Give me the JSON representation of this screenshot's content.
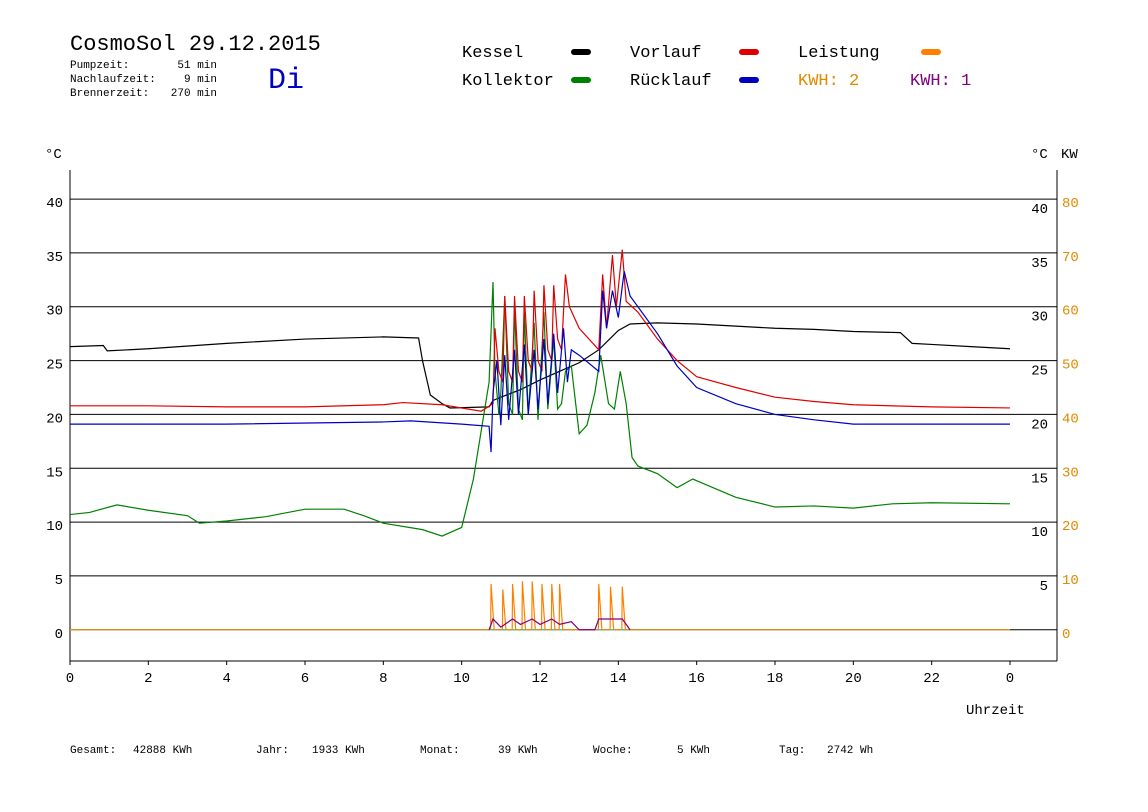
{
  "chart_data": {
    "type": "line",
    "title": "CosmoSol 29.12.2015",
    "weekday": "Di",
    "stats": [
      {
        "label": "Pumpzeit:",
        "value": "51 min"
      },
      {
        "label": "Nachlaufzeit:",
        "value": "9 min"
      },
      {
        "label": "Brennerzeit:",
        "value": "270 min"
      }
    ],
    "kwh_labels": [
      {
        "label": "KWH: 2",
        "color": "#e08a00"
      },
      {
        "label": "KWH: 1",
        "color": "#800080"
      }
    ],
    "y_unit": "°C",
    "y_right_unit": "°C",
    "y2_unit": "KW",
    "y2_color": "#e08a00",
    "x_label": "Uhrzeit",
    "xlim": [
      0,
      25.2
    ],
    "xticks": [
      0,
      2,
      4,
      6,
      8,
      10,
      12,
      14,
      16,
      18,
      20,
      22,
      {
        "value": 24,
        "label": "0"
      }
    ],
    "ylim": [
      -2.9,
      42.7
    ],
    "yticks": [
      0,
      5,
      10,
      15,
      20,
      25,
      30,
      35,
      40
    ],
    "y_right_ticks": [
      5,
      10,
      15,
      20,
      25,
      30,
      35,
      40
    ],
    "y2lim": [
      -5.8,
      85.4
    ],
    "y2ticks": [
      0,
      10,
      20,
      30,
      40,
      50,
      60,
      70,
      80
    ],
    "baseline_color": "#00e0e0",
    "grid": true,
    "series": [
      {
        "name": "Kessel",
        "color": "#000000",
        "x": [
          0,
          0.85,
          0.95,
          2,
          4,
          6,
          8,
          8.9,
          9.0,
          9.2,
          9.5,
          9.7,
          10.7,
          10.8,
          11.0,
          11.5,
          12.0,
          12.5,
          13.0,
          13.5,
          14.0,
          14.3,
          15,
          16,
          17,
          18,
          19,
          20,
          21.2,
          21.5,
          22,
          23,
          24
        ],
        "values": [
          26.3,
          26.4,
          25.9,
          26.1,
          26.6,
          27.0,
          27.2,
          27.1,
          25,
          21.8,
          21,
          20.6,
          20.7,
          21.3,
          21.6,
          22.3,
          23.2,
          24,
          24.8,
          26,
          27.8,
          28.4,
          28.5,
          28.4,
          28.2,
          28,
          27.9,
          27.7,
          27.6,
          26.6,
          26.5,
          26.3,
          26.1
        ]
      },
      {
        "name": "Kollektor",
        "color": "#008000",
        "x": [
          0,
          0.5,
          1.2,
          2,
          3,
          3.3,
          4,
          5,
          6,
          7,
          7.5,
          8,
          9,
          9.5,
          10,
          10.3,
          10.7,
          10.8,
          10.85,
          10.95,
          11.0,
          11.1,
          11.2,
          11.3,
          11.35,
          11.45,
          11.55,
          11.6,
          11.7,
          11.85,
          11.95,
          12.1,
          12.2,
          12.35,
          12.45,
          12.55,
          12.65,
          12.8,
          13.0,
          13.2,
          13.4,
          13.55,
          13.75,
          13.9,
          14.05,
          14.2,
          14.35,
          14.5,
          15,
          15.5,
          15.9,
          17,
          18,
          19,
          20,
          21,
          22,
          24
        ],
        "values": [
          10.7,
          10.9,
          11.6,
          11.1,
          10.6,
          9.9,
          10.1,
          10.5,
          11.2,
          11.2,
          10.6,
          9.9,
          9.3,
          8.7,
          9.5,
          14,
          23,
          32.3,
          24,
          20,
          22,
          31,
          21,
          20,
          30,
          20.5,
          19.5,
          29.5,
          20,
          28.5,
          19.5,
          29.5,
          20.5,
          27,
          20.5,
          21,
          24,
          24.5,
          18.2,
          19,
          22,
          25.5,
          21,
          20.5,
          24,
          21,
          16,
          15.2,
          14.5,
          13.2,
          14,
          12.3,
          11.4,
          11.5,
          11.3,
          11.7,
          11.8,
          11.7
        ]
      },
      {
        "name": "Vorlauf",
        "color": "#e00000",
        "x": [
          0,
          2,
          4,
          6,
          8,
          8.5,
          9.5,
          10.5,
          10.8,
          10.85,
          10.95,
          11.05,
          11.1,
          11.2,
          11.3,
          11.35,
          11.45,
          11.55,
          11.6,
          11.7,
          11.8,
          11.85,
          11.95,
          12.05,
          12.1,
          12.2,
          12.3,
          12.35,
          12.45,
          12.55,
          12.65,
          12.75,
          13.0,
          13.5,
          13.6,
          13.7,
          13.85,
          13.95,
          14.1,
          14.2,
          14.5,
          15,
          15.5,
          16,
          17,
          18,
          19,
          20,
          22,
          24
        ],
        "values": [
          20.8,
          20.8,
          20.7,
          20.7,
          20.9,
          21.1,
          20.9,
          20.3,
          21,
          28,
          24,
          23,
          31,
          24,
          23,
          31,
          24,
          23,
          31,
          25,
          24,
          31.5,
          25,
          24,
          32,
          26,
          25,
          32,
          27,
          26,
          33,
          30,
          28,
          26,
          33,
          28,
          34.8,
          30,
          35.3,
          30.5,
          29.5,
          27,
          25,
          23.5,
          22.5,
          21.6,
          21.2,
          20.9,
          20.7,
          20.6
        ]
      },
      {
        "name": "Rücklauf",
        "color": "#0000c0",
        "x": [
          0,
          4,
          8,
          8.7,
          10,
          10.7,
          10.75,
          10.8,
          10.9,
          11.0,
          11.1,
          11.2,
          11.35,
          11.45,
          11.6,
          11.7,
          11.85,
          11.95,
          12.1,
          12.2,
          12.35,
          12.45,
          12.6,
          12.7,
          12.8,
          13.0,
          13.5,
          13.6,
          13.7,
          13.85,
          14.0,
          14.15,
          14.3,
          14.6,
          15,
          15.5,
          16,
          17,
          18,
          19,
          20,
          22,
          24
        ],
        "values": [
          19.1,
          19.1,
          19.3,
          19.4,
          19.1,
          18.9,
          16.5,
          22,
          25,
          19,
          25.5,
          19.5,
          26,
          20,
          26.5,
          20,
          26,
          20.5,
          27,
          21,
          27.5,
          22,
          28,
          23,
          26,
          25.5,
          24,
          31.5,
          28,
          31.5,
          29,
          33.3,
          31,
          29.5,
          27.5,
          24.5,
          22.5,
          21,
          20,
          19.5,
          19.1,
          19.1,
          19.1
        ]
      },
      {
        "name": "Leistung",
        "color": "#ff8000",
        "axis": "y2",
        "x": [
          0,
          10.74,
          10.75,
          10.83,
          11.04,
          11.05,
          11.13,
          11.29,
          11.3,
          11.38,
          11.54,
          11.55,
          11.63,
          11.79,
          11.8,
          11.88,
          12.04,
          12.05,
          12.13,
          12.29,
          12.3,
          12.38,
          12.49,
          12.5,
          12.58,
          13.49,
          13.5,
          13.58,
          13.79,
          13.8,
          13.88,
          14.09,
          14.1,
          14.18,
          24
        ],
        "values": [
          0,
          0,
          8.5,
          0,
          0,
          7.5,
          0,
          0,
          8.5,
          0,
          0,
          9,
          0,
          0,
          9,
          0,
          0,
          8.5,
          0,
          0,
          8.5,
          0,
          0,
          8.5,
          0,
          0,
          8.5,
          0,
          0,
          8,
          0,
          0,
          8,
          0,
          0
        ]
      },
      {
        "color": "#800080",
        "axis": "y2",
        "x": [
          10.7,
          10.8,
          11.0,
          11.3,
          11.5,
          11.8,
          12.0,
          12.3,
          12.5,
          12.8,
          13.0,
          13.4,
          13.5,
          13.8,
          14.1,
          14.3
        ],
        "values": [
          0,
          2,
          0.5,
          2,
          1,
          2,
          1,
          2,
          1,
          1.5,
          0,
          0,
          2,
          2,
          2,
          0
        ]
      }
    ],
    "footer": [
      {
        "label": "Gesamt:",
        "value": "42888 KWh"
      },
      {
        "label": "Jahr:",
        "value": "1933 KWh"
      },
      {
        "label": "Monat:",
        "value": "39 KWh"
      },
      {
        "label": "Woche:",
        "value": "5 KWh"
      },
      {
        "label": "Tag:",
        "value": "2742 Wh"
      }
    ]
  }
}
